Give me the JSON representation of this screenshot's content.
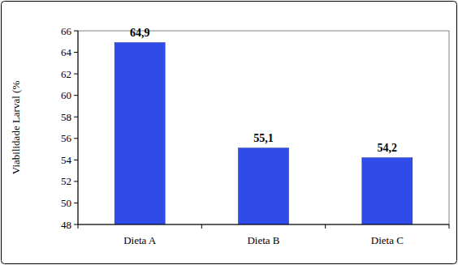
{
  "chart_data": {
    "type": "bar",
    "y_label": "Viabilidade Larval (%",
    "categories": [
      "Dieta A",
      "Dieta B",
      "Dieta C"
    ],
    "values": [
      64.9,
      55.1,
      54.2
    ],
    "value_labels": [
      "64,9",
      "55,1",
      "54,2"
    ],
    "color": "#2f4be8",
    "ylim": [
      48,
      66
    ],
    "yticks": [
      48,
      50,
      52,
      54,
      56,
      58,
      60,
      62,
      64,
      66
    ],
    "grid": false,
    "data_labels": true
  }
}
